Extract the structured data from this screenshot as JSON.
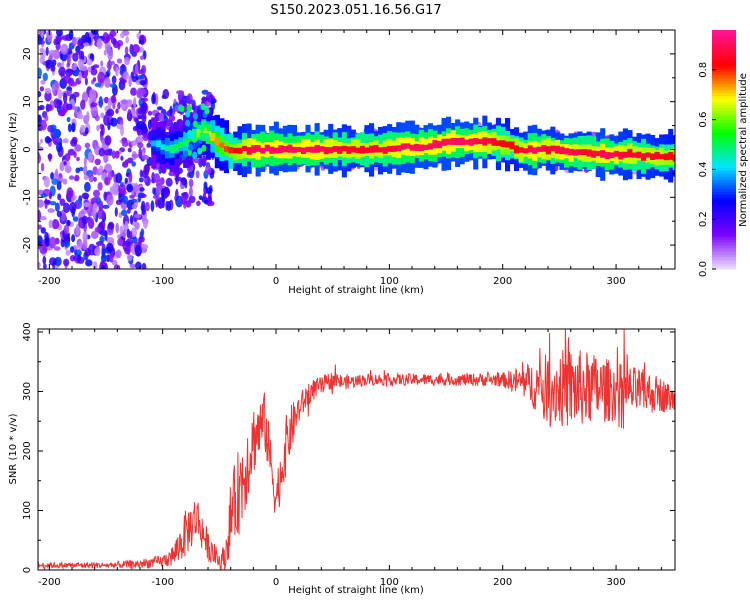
{
  "figure": {
    "title": "S150.2023.051.16.56.G17"
  },
  "colors": {
    "snr_line": "#ee3333",
    "colormap": [
      "#e8d8ff",
      "#7a00ff",
      "#0000ff",
      "#00e5ff",
      "#00ff00",
      "#ffff00",
      "#ff0000",
      "#ff1493"
    ]
  },
  "chart_data": [
    {
      "type": "heatmap",
      "title": "S150.2023.051.16.56.G17",
      "xlabel": "Height of straight line (km)",
      "ylabel": "Frequency (Hz)",
      "xlim": [
        -210,
        352
      ],
      "ylim": [
        -25,
        25
      ],
      "x_ticks": [
        -200,
        -100,
        0,
        100,
        200,
        300
      ],
      "y_ticks": [
        -20,
        -10,
        0,
        10,
        20
      ],
      "colorbar": {
        "label": "Normalized spectral amplitude",
        "range": [
          0,
          1
        ],
        "ticks": [
          "0.0",
          "0.2",
          "0.4",
          "0.6",
          "0.8"
        ],
        "tick_values": [
          0,
          0.2,
          0.4,
          0.6,
          0.8
        ]
      },
      "ridge": {
        "x": [
          -110,
          -95,
          -80,
          -65,
          -50,
          -40,
          -30,
          -20,
          0,
          30,
          60,
          90,
          110,
          130,
          150,
          170,
          190,
          205,
          215,
          225,
          240,
          255,
          270,
          290,
          310,
          330,
          352
        ],
        "frequency_hz": [
          1.5,
          0,
          2,
          4,
          1,
          -0.5,
          0,
          0,
          0,
          0,
          0,
          0,
          0.5,
          0.5,
          1.5,
          1.5,
          1.5,
          1,
          -0.5,
          0,
          0,
          -0.5,
          -0.5,
          -1,
          -1,
          -1.5,
          -1.5
        ],
        "amplitude": [
          0.4,
          0.5,
          0.55,
          0.7,
          0.8,
          0.85,
          0.9,
          0.95,
          0.95,
          0.95,
          0.9,
          0.9,
          0.95,
          0.95,
          0.95,
          0.95,
          0.9,
          0.85,
          0.9,
          0.95,
          0.9,
          0.95,
          0.9,
          0.95,
          0.9,
          0.9,
          0.85
        ]
      }
    },
    {
      "type": "line",
      "xlabel": "Height of straight line (km)",
      "ylabel": "SNR (10 * v/v)",
      "xlim": [
        -210,
        352
      ],
      "ylim": [
        0,
        405
      ],
      "x_ticks": [
        -200,
        -100,
        0,
        100,
        200,
        300
      ],
      "y_ticks": [
        0,
        100,
        200,
        300,
        400
      ],
      "series": [
        {
          "x": [
            -210,
            -180,
            -150,
            -120,
            -100,
            -90,
            -80,
            -70,
            -60,
            -50,
            -45,
            -40,
            -30,
            -20,
            -10,
            0,
            10,
            20,
            30,
            40,
            50,
            60,
            80,
            100,
            150,
            200,
            220,
            240,
            260,
            280,
            300,
            320,
            340,
            352
          ],
          "y": [
            8,
            8,
            8,
            10,
            15,
            25,
            60,
            90,
            40,
            15,
            20,
            90,
            150,
            220,
            250,
            120,
            220,
            270,
            300,
            310,
            320,
            315,
            320,
            320,
            320,
            320,
            315,
            305,
            305,
            305,
            300,
            300,
            295,
            285
          ],
          "spread": [
            5,
            5,
            5,
            8,
            10,
            20,
            40,
            40,
            25,
            15,
            25,
            60,
            80,
            60,
            50,
            40,
            50,
            25,
            20,
            15,
            15,
            12,
            10,
            10,
            10,
            12,
            30,
            60,
            70,
            60,
            50,
            40,
            30,
            20
          ]
        }
      ]
    }
  ]
}
